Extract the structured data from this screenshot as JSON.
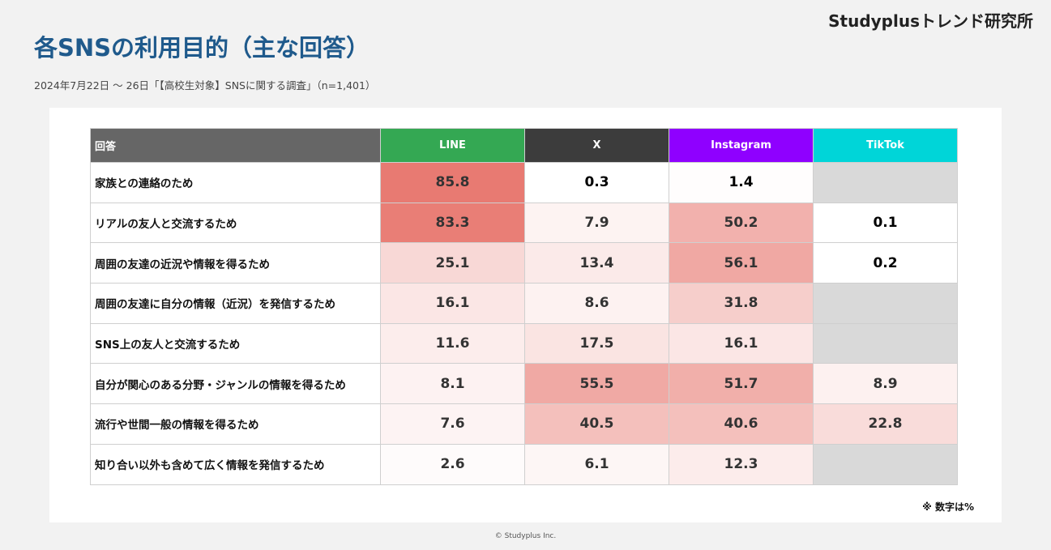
{
  "brand": "Studyplusトレンド研究所",
  "title": "各SNSの利用目的（主な回答）",
  "subtitle": "2024年7月22日 〜 26日「【高校生対象】SNSに関する調査」（n=1,401）",
  "note": "※ 数字は%",
  "footer": "© Studyplus Inc.",
  "colors": {
    "title": "#1f5a8c",
    "header_row": "#666666",
    "heat_high": "#e87a72",
    "heat_low": "#ffffff",
    "no_data": "#d9d9d9"
  },
  "chart_data": {
    "type": "table",
    "row_header": "回答",
    "columns": [
      {
        "name": "LINE",
        "color": "#34a853"
      },
      {
        "name": "X",
        "color": "#3c3c3c"
      },
      {
        "name": "Instagram",
        "color": "#8f00ff"
      },
      {
        "name": "TikTok",
        "color": "#00d5d8"
      }
    ],
    "rows": [
      {
        "label": "家族との連絡のため",
        "values": [
          85.8,
          0.3,
          1.4,
          null
        ]
      },
      {
        "label": "リアルの友人と交流するため",
        "values": [
          83.3,
          7.9,
          50.2,
          0.1
        ]
      },
      {
        "label": "周囲の友達の近況や情報を得るため",
        "values": [
          25.1,
          13.4,
          56.1,
          0.2
        ]
      },
      {
        "label": "周囲の友達に自分の情報（近況）を発信するため",
        "values": [
          16.1,
          8.6,
          31.8,
          null
        ]
      },
      {
        "label": "SNS上の友人と交流するため",
        "values": [
          11.6,
          17.5,
          16.1,
          null
        ]
      },
      {
        "label": "自分が関心のある分野・ジャンルの情報を得るため",
        "values": [
          8.1,
          55.5,
          51.7,
          8.9
        ]
      },
      {
        "label": "流行や世間一般の情報を得るため",
        "values": [
          7.6,
          40.5,
          40.6,
          22.8
        ]
      },
      {
        "label": "知り合い以外も含めて広く情報を発信するため",
        "values": [
          2.6,
          6.1,
          12.3,
          null
        ]
      }
    ]
  }
}
